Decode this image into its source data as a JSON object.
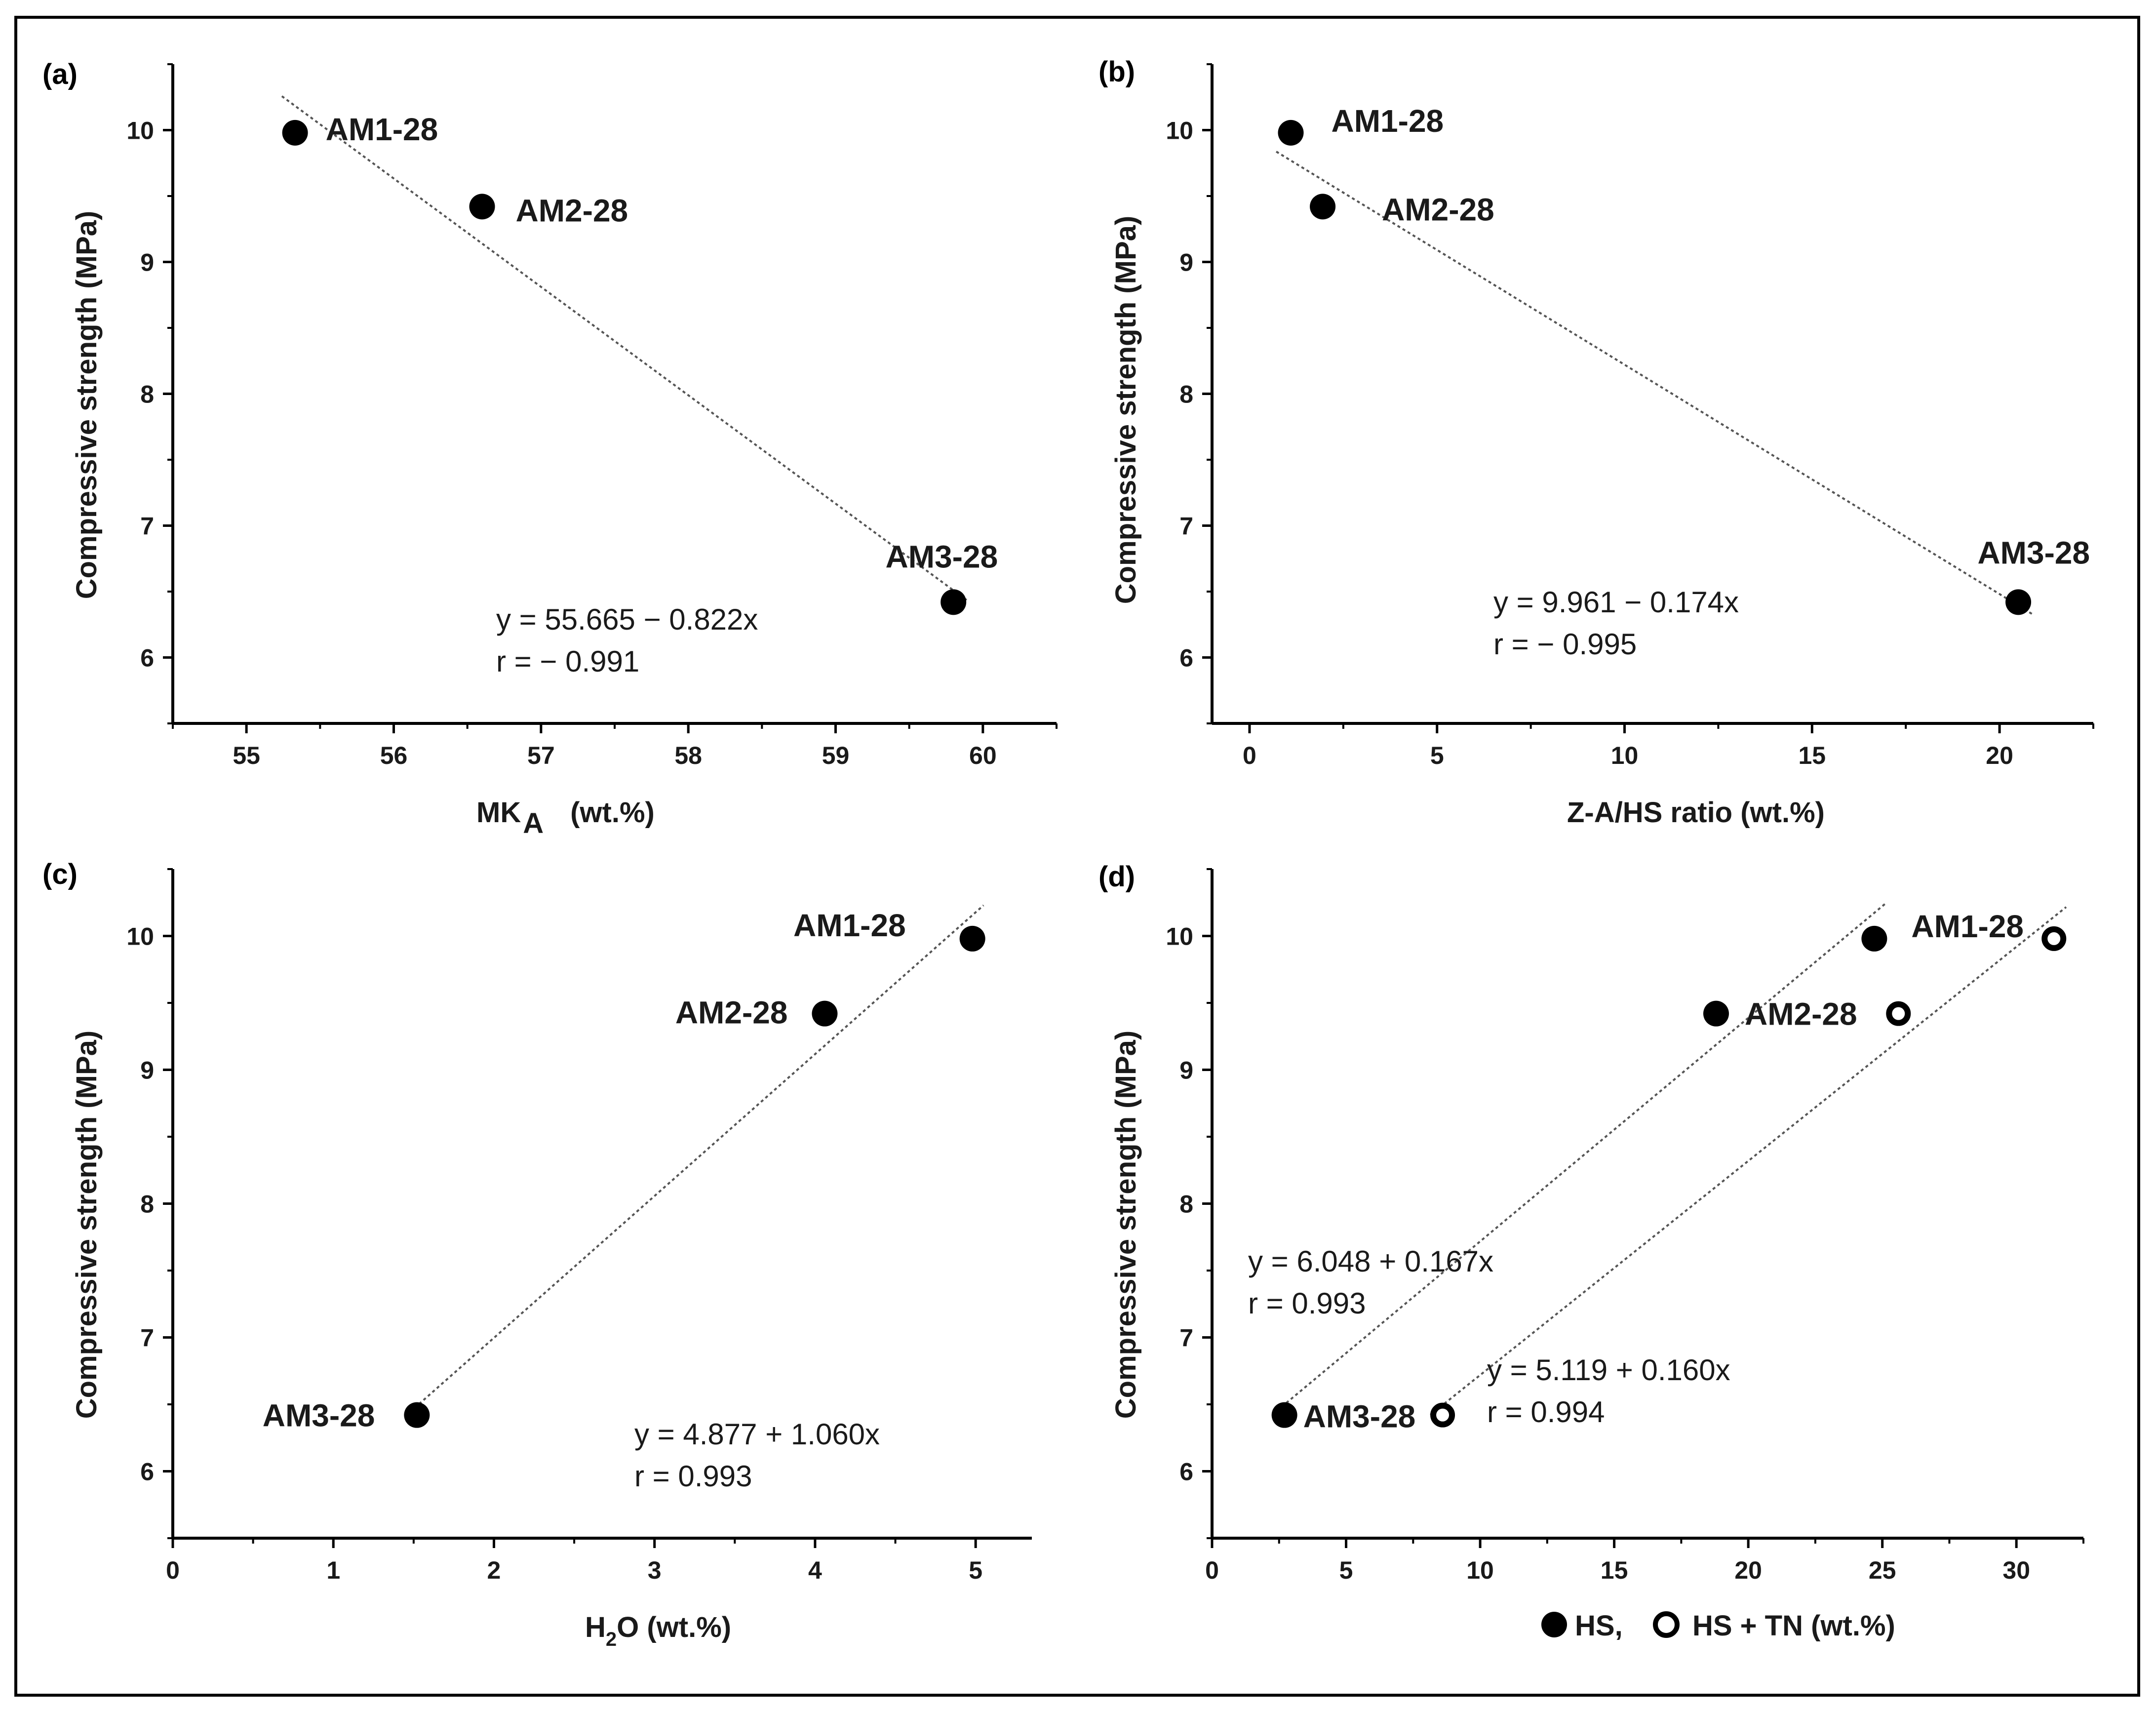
{
  "chart_data": [
    {
      "panel": "(a)",
      "type": "scatter",
      "title": "",
      "xlabel_main": "MK",
      "xlabel_sub": "A",
      "xlabel_tail": "(wt.%)",
      "ylabel": "Compressive strength (MPa)",
      "xlim": [
        54.5,
        60.5
      ],
      "ylim": [
        5.5,
        10.5
      ],
      "xticks": [
        55,
        56,
        57,
        58,
        59,
        60
      ],
      "yticks": [
        6,
        7,
        8,
        9,
        10
      ],
      "points": [
        {
          "label": "AM1-28",
          "x": 55.33,
          "y": 9.98,
          "style": "filled"
        },
        {
          "label": "AM2-28",
          "x": 56.6,
          "y": 9.42,
          "style": "filled"
        },
        {
          "label": "AM3-28",
          "x": 59.8,
          "y": 6.42,
          "style": "filled"
        }
      ],
      "fit_lines": [
        {
          "intercept": 55.665,
          "slope": -0.822,
          "x_from": 55.33,
          "x_to": 59.8,
          "equation": "y =  55.665 − 0.822x",
          "r": "r = − 0.991"
        }
      ]
    },
    {
      "panel": "(b)",
      "type": "scatter",
      "title": "",
      "xlabel": "Z-A/HS ratio (wt.%)",
      "ylabel": "Compressive strength (MPa)",
      "xlim": [
        -1,
        22.5
      ],
      "ylim": [
        5.5,
        10.5
      ],
      "xticks": [
        0,
        5,
        10,
        15,
        20
      ],
      "yticks": [
        6,
        7,
        8,
        9,
        10
      ],
      "points": [
        {
          "label": "AM1-28",
          "x": 1.1,
          "y": 9.98,
          "style": "filled"
        },
        {
          "label": "AM2-28",
          "x": 1.95,
          "y": 9.42,
          "style": "filled"
        },
        {
          "label": "AM3-28",
          "x": 20.5,
          "y": 6.42,
          "style": "filled"
        }
      ],
      "fit_lines": [
        {
          "intercept": 9.961,
          "slope": -0.174,
          "x_from": 1.1,
          "x_to": 20.5,
          "equation": "y =   9.961 − 0.174x",
          "r": "r = − 0.995"
        }
      ]
    },
    {
      "panel": "(c)",
      "type": "scatter",
      "title": "",
      "xlabel_main": "H",
      "xlabel_sub": "2",
      "xlabel_tail": "O (wt.%)",
      "ylabel": "Compressive strength (MPa)",
      "xlim": [
        0,
        5.35
      ],
      "ylim": [
        5.5,
        10.5
      ],
      "xticks": [
        0,
        1,
        2,
        3,
        4,
        5
      ],
      "yticks": [
        6,
        7,
        8,
        9,
        10
      ],
      "points": [
        {
          "label": "AM1-28",
          "x": 4.98,
          "y": 9.98,
          "style": "filled"
        },
        {
          "label": "AM2-28",
          "x": 4.06,
          "y": 9.42,
          "style": "filled"
        },
        {
          "label": "AM3-28",
          "x": 1.52,
          "y": 6.42,
          "style": "filled"
        }
      ],
      "fit_lines": [
        {
          "intercept": 4.877,
          "slope": 1.06,
          "x_from": 1.52,
          "x_to": 4.98,
          "equation": "y = 4.877 + 1.060x",
          "r": "r = 0.993"
        }
      ]
    },
    {
      "panel": "(d)",
      "type": "scatter",
      "title": "",
      "xlabel": "HS,    HS + TN (wt.%)",
      "legend": [
        {
          "name": "HS,",
          "style": "filled"
        },
        {
          "name": "HS + TN (wt.%)",
          "style": "open"
        }
      ],
      "ylabel": "Compressive strength (MPa)",
      "xlim": [
        0,
        32.5
      ],
      "ylim": [
        5.5,
        10.5
      ],
      "xticks": [
        0,
        5,
        10,
        15,
        20,
        25,
        30
      ],
      "yticks": [
        6,
        7,
        8,
        9,
        10
      ],
      "point_labels": [
        {
          "label": "AM1-28"
        },
        {
          "label": "AM2-28"
        },
        {
          "label": "AM3-28"
        }
      ],
      "series": [
        {
          "name": "HS",
          "style": "filled",
          "points": [
            {
              "label": "AM1-28",
              "x": 24.7,
              "y": 9.98
            },
            {
              "label": "AM2-28",
              "x": 18.8,
              "y": 9.42
            },
            {
              "label": "AM3-28",
              "x": 2.7,
              "y": 6.42
            }
          ]
        },
        {
          "name": "HS + TN",
          "style": "open",
          "points": [
            {
              "label": "AM1-28",
              "x": 31.4,
              "y": 9.98
            },
            {
              "label": "AM2-28",
              "x": 25.6,
              "y": 9.42
            },
            {
              "label": "AM3-28",
              "x": 8.6,
              "y": 6.42
            }
          ]
        }
      ],
      "fit_lines": [
        {
          "intercept": 6.048,
          "slope": 0.167,
          "x_from": 2.7,
          "x_to": 24.7,
          "equation": "y = 6.048 + 0.167x",
          "r": "r = 0.993"
        },
        {
          "intercept": 5.119,
          "slope": 0.16,
          "x_from": 8.6,
          "x_to": 31.4,
          "equation": "y = 5.119 + 0.160x",
          "r": "r = 0.994"
        }
      ]
    }
  ]
}
